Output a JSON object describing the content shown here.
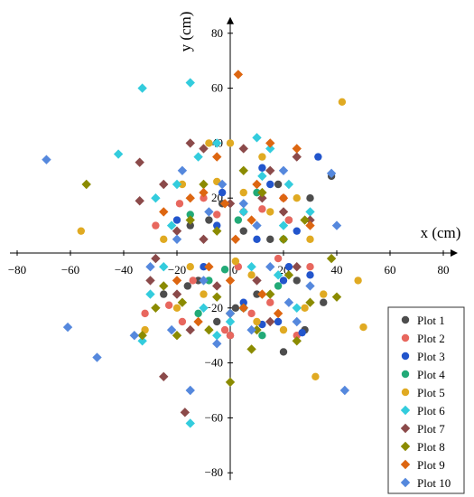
{
  "chart_data": {
    "type": "scatter",
    "title": "",
    "xlabel": "x (cm)",
    "ylabel": "y (cm)",
    "xlim": [
      -80,
      80
    ],
    "ylim": [
      -80,
      80
    ],
    "xticks": [
      -80,
      -60,
      -40,
      -20,
      0,
      20,
      40,
      60,
      80
    ],
    "yticks": [
      -80,
      -60,
      -40,
      -20,
      0,
      20,
      40,
      60,
      80
    ],
    "grid": false,
    "legend_position": "bottom-right",
    "series": [
      {
        "name": "Plot 1",
        "color": "#4d4d4d",
        "marker": "circle",
        "points": [
          [
            38,
            28
          ],
          [
            -12,
            -10
          ],
          [
            -16,
            -12
          ],
          [
            20,
            -36
          ],
          [
            28,
            -28
          ],
          [
            2,
            -20
          ],
          [
            -5,
            -25
          ],
          [
            -15,
            10
          ],
          [
            30,
            20
          ],
          [
            25,
            -10
          ],
          [
            10,
            -15
          ],
          [
            -8,
            12
          ],
          [
            5,
            8
          ],
          [
            15,
            5
          ],
          [
            -25,
            -15
          ],
          [
            18,
            25
          ],
          [
            35,
            -18
          ],
          [
            0,
            -30
          ],
          [
            -3,
            18
          ],
          [
            22,
            12
          ]
        ]
      },
      {
        "name": "Plot 2",
        "color": "#e8675e",
        "marker": "circle",
        "points": [
          [
            -23,
            -19
          ],
          [
            -32,
            -22
          ],
          [
            0,
            -30
          ],
          [
            -19,
            18
          ],
          [
            -5,
            14
          ],
          [
            12,
            16
          ],
          [
            18,
            -2
          ],
          [
            22,
            12
          ],
          [
            -14,
            -10
          ],
          [
            -2,
            -28
          ],
          [
            8,
            -22
          ],
          [
            20,
            20
          ],
          [
            -28,
            10
          ],
          [
            3,
            -5
          ],
          [
            15,
            -18
          ],
          [
            -10,
            20
          ],
          [
            30,
            -5
          ],
          [
            25,
            -30
          ],
          [
            -18,
            -25
          ],
          [
            5,
            15
          ]
        ]
      },
      {
        "name": "Plot 3",
        "color": "#2255cc",
        "marker": "circle",
        "points": [
          [
            30,
            -8
          ],
          [
            27,
            -29
          ],
          [
            33,
            35
          ],
          [
            12,
            -26
          ],
          [
            12,
            31
          ],
          [
            -5,
            10
          ],
          [
            20,
            -10
          ],
          [
            -10,
            -5
          ],
          [
            15,
            25
          ],
          [
            25,
            8
          ],
          [
            -20,
            12
          ],
          [
            5,
            -18
          ],
          [
            18,
            -25
          ],
          [
            10,
            5
          ],
          [
            -3,
            22
          ],
          [
            22,
            -5
          ]
        ]
      },
      {
        "name": "Plot 4",
        "color": "#22aa77",
        "marker": "circle",
        "points": [
          [
            -8,
            -10
          ],
          [
            5,
            -20
          ],
          [
            18,
            -12
          ],
          [
            -15,
            14
          ],
          [
            10,
            22
          ],
          [
            -2,
            -6
          ],
          [
            12,
            -30
          ],
          [
            20,
            5
          ],
          [
            -12,
            -22
          ],
          [
            3,
            12
          ]
        ]
      },
      {
        "name": "Plot 5",
        "color": "#e0aa22",
        "marker": "circle",
        "points": [
          [
            -56,
            8
          ],
          [
            42,
            55
          ],
          [
            48,
            -10
          ],
          [
            50,
            -27
          ],
          [
            32,
            -45
          ],
          [
            -32,
            -28
          ],
          [
            -20,
            -20
          ],
          [
            -10,
            -15
          ],
          [
            -5,
            26
          ],
          [
            5,
            22
          ],
          [
            10,
            -25
          ],
          [
            25,
            20
          ],
          [
            30,
            5
          ],
          [
            0,
            40
          ],
          [
            15,
            15
          ],
          [
            -15,
            -5
          ],
          [
            -25,
            5
          ],
          [
            20,
            -28
          ],
          [
            12,
            35
          ],
          [
            35,
            -15
          ],
          [
            -8,
            40
          ],
          [
            2,
            -3
          ],
          [
            8,
            -8
          ],
          [
            -18,
            25
          ],
          [
            28,
            -20
          ]
        ]
      },
      {
        "name": "Plot 6",
        "color": "#33ccdd",
        "marker": "diamond",
        "points": [
          [
            -33,
            60
          ],
          [
            -15,
            62
          ],
          [
            -15,
            -62
          ],
          [
            -33,
            -32
          ],
          [
            -42,
            36
          ],
          [
            -25,
            -5
          ],
          [
            -20,
            25
          ],
          [
            -5,
            40
          ],
          [
            10,
            42
          ],
          [
            15,
            38
          ],
          [
            25,
            -20
          ],
          [
            20,
            10
          ],
          [
            -10,
            -20
          ],
          [
            0,
            -25
          ],
          [
            -30,
            -15
          ],
          [
            -22,
            10
          ],
          [
            5,
            15
          ],
          [
            30,
            15
          ],
          [
            -12,
            35
          ],
          [
            18,
            -8
          ],
          [
            8,
            -5
          ],
          [
            -28,
            20
          ],
          [
            22,
            25
          ],
          [
            -5,
            -30
          ],
          [
            12,
            28
          ]
        ]
      },
      {
        "name": "Plot 7",
        "color": "#8b4a4a",
        "marker": "diamond",
        "points": [
          [
            -34,
            19
          ],
          [
            -34,
            33
          ],
          [
            -25,
            -45
          ],
          [
            -17,
            -58
          ],
          [
            -15,
            40
          ],
          [
            -10,
            38
          ],
          [
            5,
            38
          ],
          [
            15,
            30
          ],
          [
            -30,
            -10
          ],
          [
            -20,
            -15
          ],
          [
            10,
            -10
          ],
          [
            25,
            -5
          ],
          [
            -25,
            25
          ],
          [
            20,
            15
          ],
          [
            -10,
            5
          ],
          [
            15,
            -25
          ],
          [
            -5,
            -12
          ],
          [
            30,
            12
          ],
          [
            -20,
            8
          ],
          [
            5,
            -20
          ],
          [
            25,
            35
          ],
          [
            -15,
            -28
          ],
          [
            0,
            18
          ],
          [
            12,
            20
          ],
          [
            -28,
            -2
          ]
        ]
      },
      {
        "name": "Plot 8",
        "color": "#8b8b00",
        "marker": "diamond",
        "points": [
          [
            -54,
            25
          ],
          [
            -33,
            -30
          ],
          [
            -28,
            -20
          ],
          [
            -5,
            -16
          ],
          [
            0,
            -47
          ],
          [
            8,
            -35
          ],
          [
            25,
            -32
          ],
          [
            40,
            -16
          ],
          [
            38,
            -2
          ],
          [
            -20,
            -30
          ],
          [
            15,
            -15
          ],
          [
            -10,
            25
          ],
          [
            5,
            30
          ],
          [
            20,
            5
          ],
          [
            -15,
            12
          ],
          [
            28,
            12
          ],
          [
            -25,
            -12
          ],
          [
            10,
            -28
          ],
          [
            -5,
            8
          ],
          [
            30,
            -18
          ],
          [
            -18,
            -18
          ],
          [
            12,
            22
          ],
          [
            0,
            -22
          ],
          [
            22,
            -8
          ],
          [
            -8,
            -28
          ]
        ]
      },
      {
        "name": "Plot 9",
        "color": "#dd6611",
        "marker": "diamond",
        "points": [
          [
            3,
            65
          ],
          [
            -10,
            22
          ],
          [
            -2,
            18
          ],
          [
            5,
            -20
          ],
          [
            10,
            25
          ],
          [
            15,
            40
          ],
          [
            -15,
            20
          ],
          [
            -25,
            15
          ],
          [
            20,
            20
          ],
          [
            0,
            -10
          ],
          [
            -8,
            -5
          ],
          [
            12,
            -15
          ],
          [
            25,
            38
          ],
          [
            -20,
            -10
          ],
          [
            30,
            10
          ],
          [
            -5,
            35
          ],
          [
            8,
            12
          ],
          [
            18,
            -22
          ],
          [
            -12,
            -25
          ],
          [
            2,
            5
          ]
        ]
      },
      {
        "name": "Plot 10",
        "color": "#5588dd",
        "marker": "diamond",
        "points": [
          [
            -69,
            34
          ],
          [
            -61,
            -27
          ],
          [
            -50,
            -38
          ],
          [
            -36,
            -30
          ],
          [
            -15,
            -50
          ],
          [
            -22,
            -28
          ],
          [
            -5,
            -33
          ],
          [
            0,
            -22
          ],
          [
            5,
            18
          ],
          [
            38,
            29
          ],
          [
            43,
            -50
          ],
          [
            40,
            10
          ],
          [
            -20,
            5
          ],
          [
            15,
            -5
          ],
          [
            25,
            -25
          ],
          [
            10,
            10
          ],
          [
            -10,
            -10
          ],
          [
            20,
            30
          ],
          [
            -30,
            -5
          ],
          [
            30,
            -12
          ],
          [
            -3,
            25
          ],
          [
            8,
            -28
          ],
          [
            -18,
            30
          ],
          [
            22,
            -18
          ],
          [
            -8,
            15
          ]
        ]
      }
    ]
  }
}
